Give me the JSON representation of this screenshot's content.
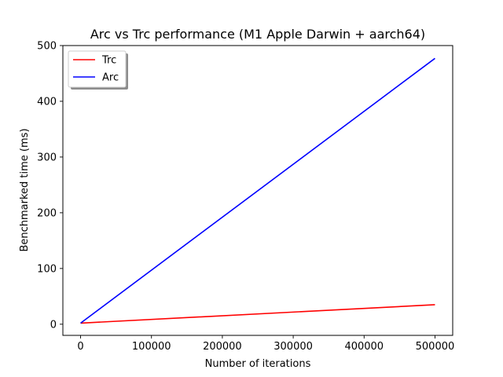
{
  "chart_data": {
    "type": "line",
    "title": "Arc vs Trc performance (M1 Apple Darwin + aarch64)",
    "xlabel": "Number of iterations",
    "ylabel": "Benchmarked time (ms)",
    "xlim": [
      -25000,
      525000
    ],
    "ylim": [
      -20,
      500
    ],
    "xticks": [
      0,
      100000,
      200000,
      300000,
      400000,
      500000
    ],
    "yticks": [
      0,
      100,
      200,
      300,
      400,
      500
    ],
    "grid": false,
    "legend_position": "upper-left",
    "series": [
      {
        "name": "Trc",
        "color": "#ff0000",
        "x": [
          0,
          500000
        ],
        "y": [
          2,
          35
        ]
      },
      {
        "name": "Arc",
        "color": "#0000ff",
        "x": [
          0,
          500000
        ],
        "y": [
          2,
          477
        ]
      }
    ]
  }
}
